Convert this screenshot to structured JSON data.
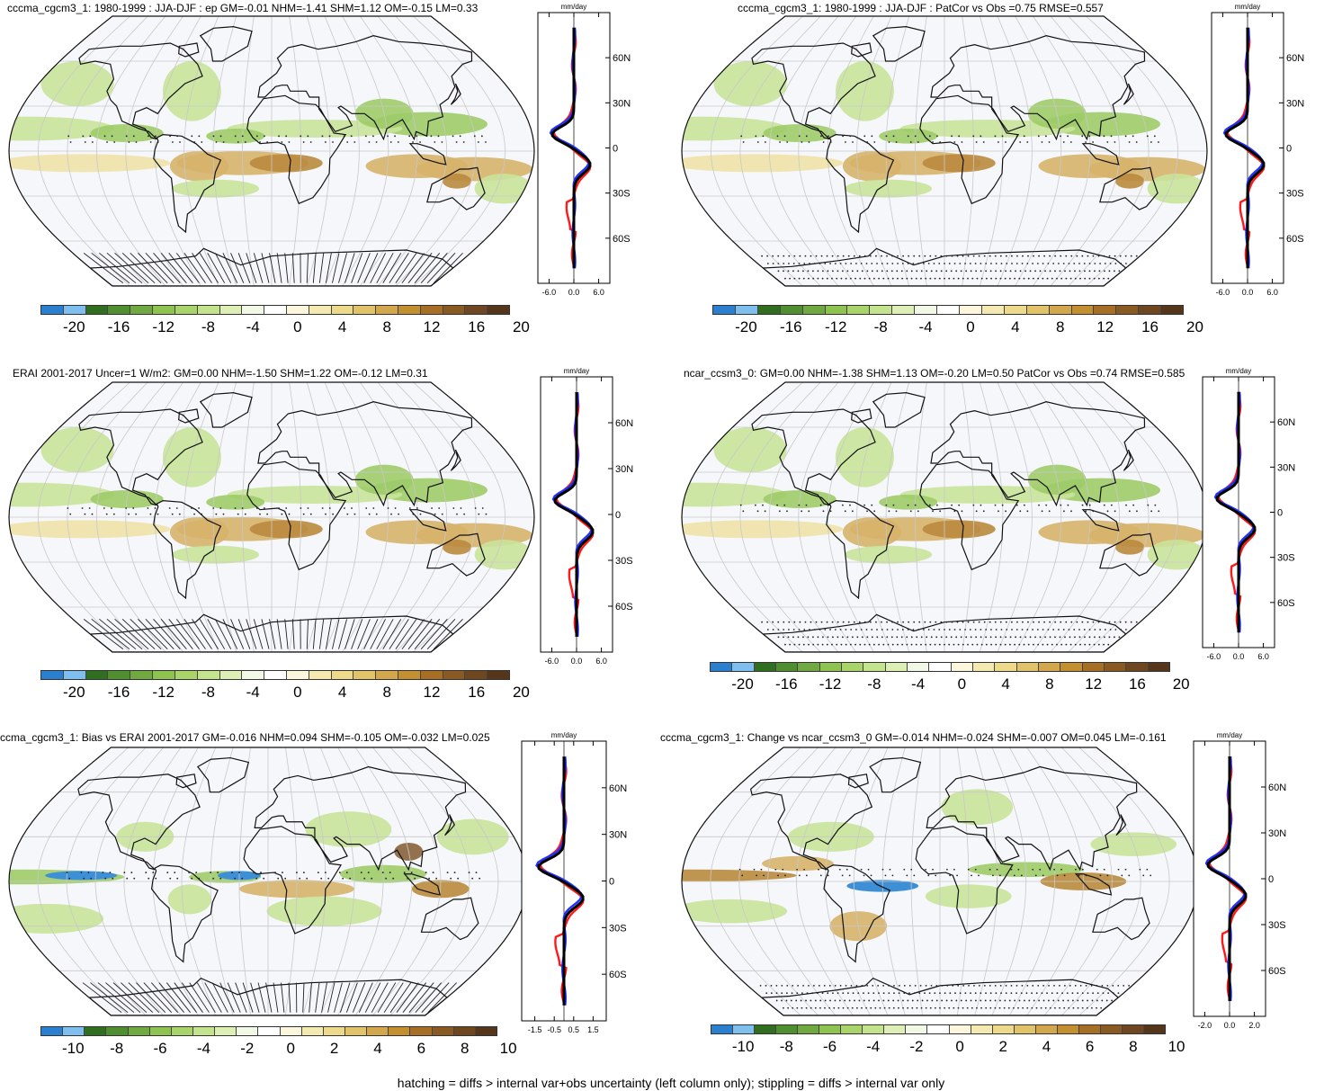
{
  "panels": [
    {
      "title": "cccma_cgcm3_1: 1980-1999 : JJA-DJF : ep GM=-0.01 NHM=-1.41 SHM=1.12 OM=-0.15 LM=0.33",
      "profile_unit": "mm/day",
      "profile_xticks": [
        "-6.0",
        "0.0",
        "6.0"
      ],
      "profile_yticks": [
        "60N",
        "30N",
        "0",
        "30S",
        "60S"
      ],
      "colorbar_labels": [
        "-20",
        "-16",
        "-12",
        "-8",
        "-4",
        "0",
        "4",
        "8",
        "12",
        "16",
        "20"
      ]
    },
    {
      "title": "cccma_cgcm3_1: 1980-1999 : JJA-DJF : PatCor vs Obs =0.75 RMSE=0.557",
      "profile_unit": "mm/day",
      "profile_xticks": [
        "-6.0",
        "0.0",
        "6.0"
      ],
      "profile_yticks": [
        "60N",
        "30N",
        "0",
        "30S",
        "60S"
      ],
      "colorbar_labels": [
        "-20",
        "-16",
        "-12",
        "-8",
        "-4",
        "0",
        "4",
        "8",
        "12",
        "16",
        "20"
      ]
    },
    {
      "title": "ERAI 2001-2017 Uncer=1 W/m2: GM=0.00 NHM=-1.50 SHM=1.22 OM=-0.12 LM=0.31",
      "profile_unit": "mm/day",
      "profile_xticks": [
        "-6.0",
        "0.0",
        "6.0"
      ],
      "profile_yticks": [
        "60N",
        "30N",
        "0",
        "30S",
        "60S"
      ],
      "colorbar_labels": [
        "-20",
        "-16",
        "-12",
        "-8",
        "-4",
        "0",
        "4",
        "8",
        "12",
        "16",
        "20"
      ]
    },
    {
      "title": "ncar_ccsm3_0: GM=0.00 NHM=-1.38 SHM=1.13 OM=-0.20 LM=0.50 PatCor vs Obs =0.74 RMSE=0.585",
      "profile_unit": "mm/day",
      "profile_xticks": [
        "-6.0",
        "0.0",
        "6.0"
      ],
      "profile_yticks": [
        "60N",
        "30N",
        "0",
        "30S",
        "60S"
      ],
      "colorbar_labels": [
        "-20",
        "-16",
        "-12",
        "-8",
        "-4",
        "0",
        "4",
        "8",
        "12",
        "16",
        "20"
      ]
    },
    {
      "title": "ccma_cgcm3_1: Bias vs ERAI 2001-2017 GM=-0.016 NHM=0.094 SHM=-0.105 OM=-0.032 LM=0.025",
      "profile_unit": "mm/day",
      "profile_xticks": [
        "-1.5",
        "-0.5",
        "0.5",
        "1.5"
      ],
      "profile_yticks": [
        "60N",
        "30N",
        "0",
        "30S",
        "60S"
      ],
      "colorbar_labels": [
        "-10",
        "-8",
        "-6",
        "-4",
        "-2",
        "0",
        "2",
        "4",
        "6",
        "8",
        "10"
      ]
    },
    {
      "title": "cccma_cgcm3_1: Change vs ncar_ccsm3_0 GM=-0.014 NHM=-0.024 SHM=-0.007 OM=0.045 LM=-0.161",
      "profile_unit": "mm/day",
      "profile_xticks": [
        "-2.0",
        "0.0",
        "2.0"
      ],
      "profile_yticks": [
        "60N",
        "30N",
        "0",
        "30S",
        "60S"
      ],
      "colorbar_labels": [
        "-10",
        "-8",
        "-6",
        "-4",
        "-2",
        "0",
        "2",
        "4",
        "6",
        "8",
        "10"
      ]
    }
  ],
  "colorbar_colors": [
    "#2a7fcf",
    "#7fbfef",
    "#2f6f1f",
    "#4f8f2f",
    "#6fa93f",
    "#8fc34f",
    "#a8d46a",
    "#c3e38c",
    "#ddefb4",
    "#f2f8e6",
    "#ffffff",
    "#fbf6dc",
    "#f4e9b0",
    "#ecd98a",
    "#e1c36a",
    "#d3a84c",
    "#c48f2e",
    "#a66f25",
    "#8a5a23",
    "#6e4620",
    "#55361a"
  ],
  "footer": "hatching = diffs > internal var+obs uncertainty (left column only); stippling = diffs > internal var only"
}
